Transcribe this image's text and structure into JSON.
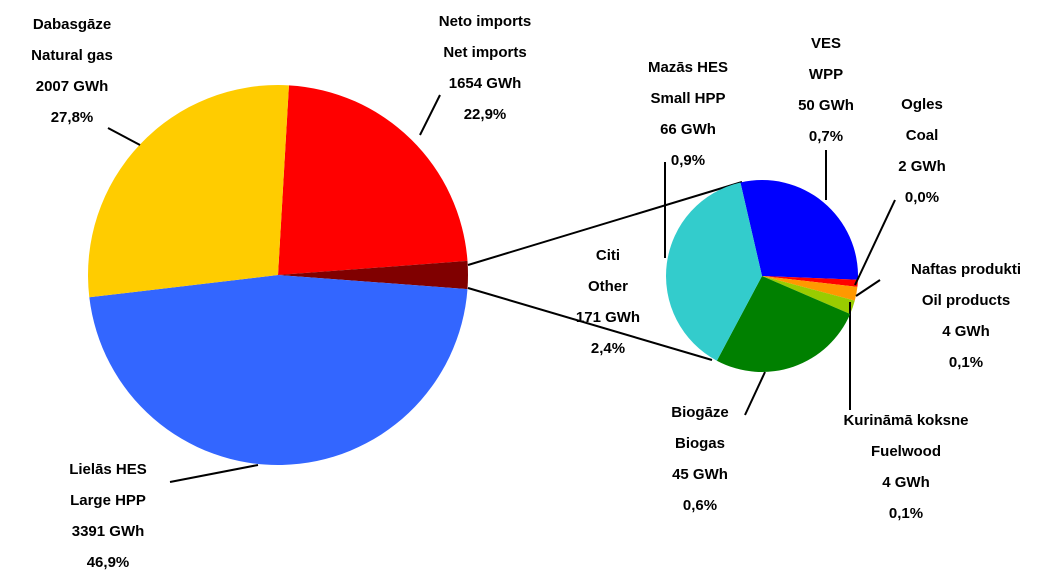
{
  "chart_data": [
    {
      "type": "pie",
      "names_lv": [
        "Neto imports",
        "Citi",
        "Lielās HES",
        "Dabasgāze"
      ],
      "categories": [
        "Net imports",
        "Other",
        "Large HPP",
        "Natural gas"
      ],
      "values": [
        1654,
        171,
        3391,
        2007
      ],
      "value_labels": [
        "1654 GWh",
        "171 GWh",
        "3391 GWh",
        "2007 GWh"
      ],
      "percent_labels": [
        "22,9%",
        "2,4%",
        "46,9%",
        "27,8%"
      ],
      "colors": [
        "#ff0000",
        "#800000",
        "#3366ff",
        "#ffcc00"
      ]
    },
    {
      "type": "pie",
      "names_lv": [
        "VES",
        "Ogles",
        "Naftas produkti",
        "Kurināmā koksne",
        "Biogāze",
        "Mazās HES"
      ],
      "categories": [
        "WPP",
        "Coal",
        "Oil products",
        "Fuelwood",
        "Biogas",
        "Small HPP"
      ],
      "values": [
        50,
        2,
        4,
        4,
        45,
        66
      ],
      "value_labels": [
        "50 GWh",
        "2 GWh",
        "4 GWh",
        "4 GWh",
        "45 GWh",
        "66 GWh"
      ],
      "percent_labels": [
        "0,7%",
        "0,0%",
        "0,1%",
        "0,1%",
        "0,6%",
        "0,9%"
      ],
      "colors": [
        "#0000ff",
        "#ff0000",
        "#ff9900",
        "#99cc00",
        "#008000",
        "#33cccc"
      ]
    }
  ]
}
